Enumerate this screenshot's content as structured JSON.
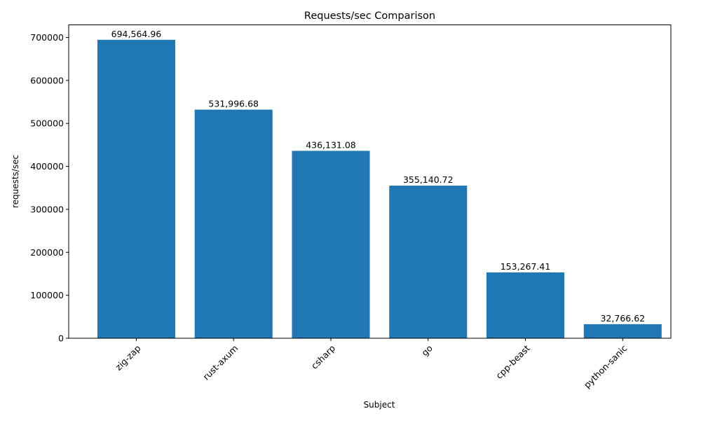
{
  "chart_data": {
    "type": "bar",
    "title": "Requests/sec Comparison",
    "xlabel": "Subject",
    "ylabel": "requests/sec",
    "categories": [
      "zig-zap",
      "rust-axum",
      "csharp",
      "go",
      "cpp-beast",
      "python-sanic"
    ],
    "values": [
      694564.96,
      531996.68,
      436131.08,
      355140.72,
      153267.41,
      32766.62
    ],
    "data_labels": [
      "694,564.96",
      "531,996.68",
      "436,131.08",
      "355,140.72",
      "153,267.41",
      "32,766.62"
    ],
    "yticks": [
      0,
      100000,
      200000,
      300000,
      400000,
      500000,
      600000,
      700000
    ],
    "ylim": [
      0,
      729293
    ],
    "grid": false,
    "bar_color": "#1f77b4",
    "xtick_rotation": 45
  }
}
